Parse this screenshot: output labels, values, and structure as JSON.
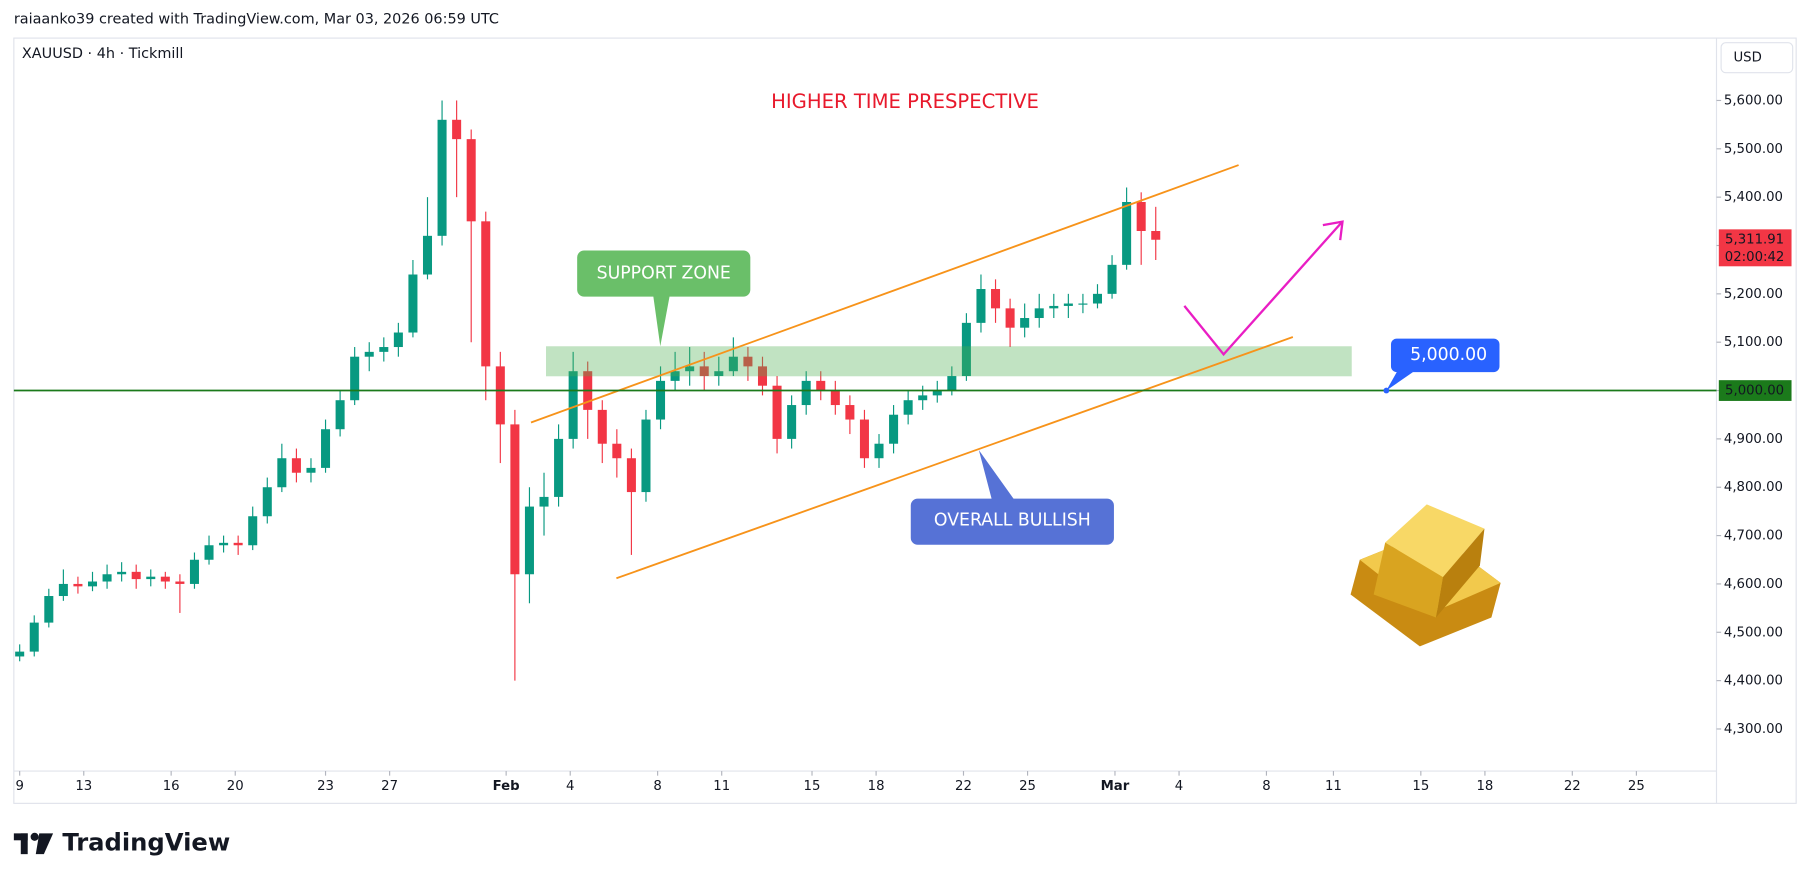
{
  "header": "raiaanko39 created with TradingView.com, Mar 03, 2026 06:59 UTC",
  "logo": "TradingView",
  "chart_data": {
    "type": "candlestick",
    "symbol": "XAUUSD · 4h · Tickmill",
    "currency": "USD",
    "title": "HIGHER TIME PRESPECTIVE",
    "annotations": [
      "SUPPORT ZONE",
      "OVERALL BULLISH"
    ],
    "up_color": "#089981",
    "down_color": "#f23645",
    "x": [
      0,
      0.5,
      1,
      1.5,
      2,
      2.5,
      3,
      3.5,
      4,
      4.5,
      5,
      5.5,
      6,
      6.5,
      7,
      7.5,
      8,
      8.5,
      9,
      9.5,
      10,
      10.5,
      11,
      11.5,
      12,
      12.5,
      13,
      13.5,
      14,
      14.5,
      15,
      15.5,
      16,
      16.5,
      17,
      17.5,
      18,
      18.5,
      19,
      19.5,
      20,
      20.5,
      21,
      21.5,
      22,
      22.5,
      23,
      23.5,
      24,
      24.5,
      25,
      25.5,
      26,
      26.5,
      27,
      27.5,
      28,
      28.5,
      29,
      29.5,
      30,
      30.5,
      31,
      31.5,
      32,
      32.5,
      33,
      33.5,
      34,
      34.5,
      35,
      35.5,
      36,
      36.5,
      37,
      37.5,
      38,
      38.5,
      39
    ],
    "open": [
      4450,
      4460,
      4520,
      4575,
      4600,
      4595,
      4605,
      4620,
      4625,
      4610,
      4615,
      4605,
      4600,
      4650,
      4680,
      4685,
      4680,
      4740,
      4800,
      4860,
      4830,
      4840,
      4920,
      4980,
      5070,
      5080,
      5090,
      5120,
      5240,
      5320,
      5560,
      5520,
      5350,
      5050,
      4930,
      4620,
      4760,
      4780,
      4900,
      5040,
      4960,
      4890,
      4860,
      4790,
      4940,
      5020,
      5040,
      5050,
      5030,
      5040,
      5070,
      5050,
      5010,
      4900,
      4970,
      5020,
      5000,
      4970,
      4940,
      4860,
      4890,
      4950,
      4980,
      4990,
      5000,
      5030,
      5140,
      5210,
      5170,
      5130,
      5150,
      5170,
      5175,
      5180,
      5180,
      5200,
      5260,
      5390,
      5330
    ],
    "high": [
      4475,
      4535,
      4590,
      4630,
      4615,
      4625,
      4640,
      4645,
      4640,
      4630,
      4625,
      4620,
      4665,
      4700,
      4700,
      4700,
      4760,
      4820,
      4890,
      4880,
      4860,
      4940,
      5000,
      5090,
      5100,
      5110,
      5140,
      5270,
      5400,
      5600,
      5600,
      5540,
      5370,
      5080,
      4960,
      4800,
      4830,
      4930,
      5080,
      5060,
      4980,
      4920,
      4880,
      4960,
      5050,
      5080,
      5090,
      5080,
      5070,
      5110,
      5090,
      5070,
      5030,
      4990,
      5040,
      5040,
      5020,
      4990,
      4960,
      4910,
      4970,
      5000,
      5010,
      5020,
      5050,
      5160,
      5240,
      5230,
      5190,
      5180,
      5200,
      5200,
      5200,
      5200,
      5220,
      5280,
      5420,
      5410,
      5380
    ],
    "low": [
      4440,
      4450,
      4510,
      4565,
      4580,
      4585,
      4590,
      4605,
      4590,
      4595,
      4590,
      4540,
      4590,
      4640,
      4665,
      4660,
      4670,
      4725,
      4790,
      4810,
      4810,
      4830,
      4905,
      4970,
      5040,
      5060,
      5070,
      5110,
      5230,
      5300,
      5400,
      5100,
      4980,
      4850,
      4400,
      4560,
      4700,
      4760,
      4880,
      4900,
      4850,
      4820,
      4660,
      4770,
      4920,
      5000,
      5010,
      5000,
      5010,
      5030,
      5020,
      4990,
      4870,
      4880,
      4950,
      4980,
      4950,
      4910,
      4840,
      4840,
      4870,
      4930,
      4960,
      4975,
      4990,
      5020,
      5120,
      5140,
      5090,
      5110,
      5130,
      5150,
      5150,
      5160,
      5170,
      5190,
      5250,
      5260,
      5270
    ],
    "close": [
      4460,
      4520,
      4575,
      4600,
      4595,
      4605,
      4620,
      4625,
      4610,
      4615,
      4605,
      4600,
      4650,
      4680,
      4685,
      4680,
      4740,
      4800,
      4860,
      4830,
      4840,
      4920,
      4980,
      5070,
      5080,
      5090,
      5120,
      5240,
      5320,
      5560,
      5520,
      5350,
      5050,
      4930,
      4620,
      4760,
      4780,
      4900,
      5040,
      4960,
      4890,
      4860,
      4790,
      4940,
      5020,
      5040,
      5050,
      5030,
      5040,
      5070,
      5050,
      5010,
      4900,
      4970,
      5020,
      5000,
      4970,
      4940,
      4860,
      4890,
      4950,
      4980,
      4990,
      5000,
      5030,
      5140,
      5210,
      5170,
      5130,
      5150,
      5170,
      5175,
      5180,
      5180,
      5200,
      5260,
      5390,
      5330,
      5311.91
    ],
    "last_price": {
      "value": 5311.91,
      "label": "5,311.91"
    },
    "countdown": "02:00:42",
    "hline": {
      "value": 5000,
      "label": "5,000.00",
      "color": "#1b7a1b"
    },
    "xlim": [
      -0.2,
      58.25
    ],
    "ylim": [
      4213,
      5729
    ],
    "xticks": [
      {
        "value": 0,
        "label": "9"
      },
      {
        "value": 2.2,
        "label": "13"
      },
      {
        "value": 5.2,
        "label": "16"
      },
      {
        "value": 7.4,
        "label": "20"
      },
      {
        "value": 10.5,
        "label": "23"
      },
      {
        "value": 12.7,
        "label": "27"
      },
      {
        "value": 16.7,
        "label": "Feb"
      },
      {
        "value": 18.9,
        "label": "4"
      },
      {
        "value": 21.9,
        "label": "8"
      },
      {
        "value": 24.1,
        "label": "11"
      },
      {
        "value": 27.2,
        "label": "15"
      },
      {
        "value": 29.4,
        "label": "18"
      },
      {
        "value": 32.4,
        "label": "22"
      },
      {
        "value": 34.6,
        "label": "25"
      },
      {
        "value": 37.6,
        "label": "Mar"
      },
      {
        "value": 39.8,
        "label": "4"
      },
      {
        "value": 42.8,
        "label": "8"
      },
      {
        "value": 45.1,
        "label": "11"
      },
      {
        "value": 48.1,
        "label": "15"
      },
      {
        "value": 50.3,
        "label": "18"
      },
      {
        "value": 53.3,
        "label": "22"
      },
      {
        "value": 55.5,
        "label": "25"
      }
    ],
    "yticks": [
      {
        "value": 4300,
        "label": "4,300.00"
      },
      {
        "value": 4400,
        "label": "4,400.00"
      },
      {
        "value": 4500,
        "label": "4,500.00"
      },
      {
        "value": 4600,
        "label": "4,600.00"
      },
      {
        "value": 4700,
        "label": "4,700.00"
      },
      {
        "value": 4800,
        "label": "4,800.00"
      },
      {
        "value": 4900,
        "label": "4,900.00"
      },
      {
        "value": 5000,
        "label": "5,000.00"
      },
      {
        "value": 5100,
        "label": "5,100.00"
      },
      {
        "value": 5200,
        "label": "5,200.00"
      },
      {
        "value": 5300,
        "label": "5,300.00"
      },
      {
        "value": 5400,
        "label": "5,400.00"
      },
      {
        "value": 5500,
        "label": "5,500.00"
      },
      {
        "value": 5600,
        "label": "5,600.00"
      }
    ]
  }
}
